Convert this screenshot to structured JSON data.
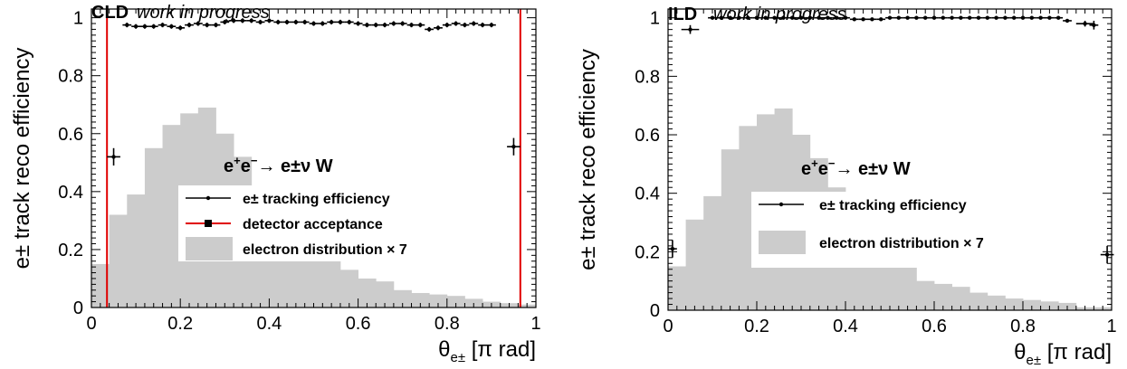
{
  "chart_data": [
    {
      "type": "bar",
      "experiment": "CLD",
      "status": "work in progress",
      "xlabel": "θ",
      "xlabel_sub": "e±",
      "xlabel_unit": "[π rad]",
      "ylabel": "e± track reco efficiency",
      "xlim": [
        0,
        1
      ],
      "ylim": [
        0,
        1.03
      ],
      "xticks": [
        0,
        0.2,
        0.4,
        0.6,
        0.8,
        1
      ],
      "xtick_labels": [
        "0",
        "0.2",
        "0.4",
        "0.6",
        "0.8",
        "1"
      ],
      "yticks": [
        0,
        0.2,
        0.4,
        0.6,
        0.8,
        1
      ],
      "ytick_labels": [
        "0",
        "0.2",
        "0.4",
        "0.6",
        "0.8",
        "1"
      ],
      "process": {
        "lead": "e",
        "sup1": "+",
        "e2": "e",
        "sup2": "−",
        "arrow": "→",
        "rest": "e±ν W"
      },
      "legend": [
        {
          "label": "e± tracking efficiency",
          "style": "point"
        },
        {
          "label": "detector acceptance",
          "style": "red-line"
        },
        {
          "label": "electron distribution × 7",
          "style": "fill"
        }
      ],
      "acceptance_lines": [
        0.035,
        0.965
      ],
      "distribution": {
        "bin_edges": [
          0,
          0.04,
          0.08,
          0.12,
          0.16,
          0.2,
          0.24,
          0.28,
          0.32,
          0.36,
          0.4,
          0.44,
          0.48,
          0.52,
          0.56,
          0.6,
          0.64,
          0.68,
          0.72,
          0.76,
          0.8,
          0.84,
          0.88,
          0.92,
          0.96,
          1.0
        ],
        "values": [
          0.15,
          0.32,
          0.39,
          0.55,
          0.63,
          0.67,
          0.69,
          0.6,
          0.52,
          0.42,
          0.37,
          0.33,
          0.27,
          0.17,
          0.13,
          0.1,
          0.09,
          0.06,
          0.05,
          0.045,
          0.04,
          0.03,
          0.02,
          0.015,
          0.01
        ]
      },
      "efficiency": {
        "points": [
          {
            "x": 0.05,
            "y": 0.52,
            "xerr": 0.015,
            "yerr": 0.03
          },
          {
            "x": 0.08,
            "y": 0.975,
            "xerr": 0.01,
            "yerr": 0.008
          },
          {
            "x": 0.1,
            "y": 0.97,
            "xerr": 0.01,
            "yerr": 0.008
          },
          {
            "x": 0.12,
            "y": 0.97,
            "xerr": 0.01,
            "yerr": 0.008
          },
          {
            "x": 0.14,
            "y": 0.97,
            "xerr": 0.01,
            "yerr": 0.008
          },
          {
            "x": 0.16,
            "y": 0.975,
            "xerr": 0.01,
            "yerr": 0.008
          },
          {
            "x": 0.18,
            "y": 0.97,
            "xerr": 0.01,
            "yerr": 0.008
          },
          {
            "x": 0.2,
            "y": 0.965,
            "xerr": 0.01,
            "yerr": 0.008
          },
          {
            "x": 0.22,
            "y": 0.975,
            "xerr": 0.01,
            "yerr": 0.008
          },
          {
            "x": 0.24,
            "y": 0.98,
            "xerr": 0.01,
            "yerr": 0.008
          },
          {
            "x": 0.26,
            "y": 0.975,
            "xerr": 0.01,
            "yerr": 0.008
          },
          {
            "x": 0.28,
            "y": 0.975,
            "xerr": 0.01,
            "yerr": 0.008
          },
          {
            "x": 0.3,
            "y": 0.985,
            "xerr": 0.01,
            "yerr": 0.008
          },
          {
            "x": 0.32,
            "y": 0.99,
            "xerr": 0.01,
            "yerr": 0.008
          },
          {
            "x": 0.34,
            "y": 0.99,
            "xerr": 0.01,
            "yerr": 0.008
          },
          {
            "x": 0.36,
            "y": 0.99,
            "xerr": 0.01,
            "yerr": 0.008
          },
          {
            "x": 0.38,
            "y": 0.985,
            "xerr": 0.01,
            "yerr": 0.008
          },
          {
            "x": 0.4,
            "y": 0.99,
            "xerr": 0.01,
            "yerr": 0.008
          },
          {
            "x": 0.42,
            "y": 0.985,
            "xerr": 0.01,
            "yerr": 0.008
          },
          {
            "x": 0.44,
            "y": 0.985,
            "xerr": 0.01,
            "yerr": 0.008
          },
          {
            "x": 0.46,
            "y": 0.985,
            "xerr": 0.01,
            "yerr": 0.008
          },
          {
            "x": 0.48,
            "y": 0.985,
            "xerr": 0.01,
            "yerr": 0.008
          },
          {
            "x": 0.5,
            "y": 0.98,
            "xerr": 0.01,
            "yerr": 0.008
          },
          {
            "x": 0.52,
            "y": 0.98,
            "xerr": 0.01,
            "yerr": 0.008
          },
          {
            "x": 0.54,
            "y": 0.985,
            "xerr": 0.01,
            "yerr": 0.008
          },
          {
            "x": 0.56,
            "y": 0.985,
            "xerr": 0.01,
            "yerr": 0.008
          },
          {
            "x": 0.58,
            "y": 0.985,
            "xerr": 0.01,
            "yerr": 0.008
          },
          {
            "x": 0.6,
            "y": 0.98,
            "xerr": 0.01,
            "yerr": 0.008
          },
          {
            "x": 0.62,
            "y": 0.975,
            "xerr": 0.01,
            "yerr": 0.008
          },
          {
            "x": 0.64,
            "y": 0.975,
            "xerr": 0.01,
            "yerr": 0.008
          },
          {
            "x": 0.66,
            "y": 0.975,
            "xerr": 0.01,
            "yerr": 0.008
          },
          {
            "x": 0.68,
            "y": 0.98,
            "xerr": 0.01,
            "yerr": 0.008
          },
          {
            "x": 0.7,
            "y": 0.98,
            "xerr": 0.01,
            "yerr": 0.008
          },
          {
            "x": 0.72,
            "y": 0.975,
            "xerr": 0.01,
            "yerr": 0.008
          },
          {
            "x": 0.74,
            "y": 0.975,
            "xerr": 0.01,
            "yerr": 0.008
          },
          {
            "x": 0.76,
            "y": 0.96,
            "xerr": 0.01,
            "yerr": 0.008
          },
          {
            "x": 0.78,
            "y": 0.965,
            "xerr": 0.01,
            "yerr": 0.008
          },
          {
            "x": 0.8,
            "y": 0.975,
            "xerr": 0.01,
            "yerr": 0.008
          },
          {
            "x": 0.82,
            "y": 0.98,
            "xerr": 0.01,
            "yerr": 0.008
          },
          {
            "x": 0.84,
            "y": 0.975,
            "xerr": 0.01,
            "yerr": 0.008
          },
          {
            "x": 0.86,
            "y": 0.98,
            "xerr": 0.01,
            "yerr": 0.008
          },
          {
            "x": 0.88,
            "y": 0.975,
            "xerr": 0.01,
            "yerr": 0.008
          },
          {
            "x": 0.9,
            "y": 0.975,
            "xerr": 0.01,
            "yerr": 0.008
          },
          {
            "x": 0.95,
            "y": 0.555,
            "xerr": 0.015,
            "yerr": 0.03
          }
        ]
      }
    },
    {
      "type": "bar",
      "experiment": "ILD",
      "status": "work in progress",
      "xlabel": "θ",
      "xlabel_sub": "e±",
      "xlabel_unit": "[π rad]",
      "ylabel": "e± track reco efficiency",
      "xlim": [
        0,
        1
      ],
      "ylim": [
        0,
        1.03
      ],
      "xticks": [
        0,
        0.2,
        0.4,
        0.6,
        0.8,
        1
      ],
      "xtick_labels": [
        "0",
        "0.2",
        "0.4",
        "0.6",
        "0.8",
        "1"
      ],
      "yticks": [
        0,
        0.2,
        0.4,
        0.6,
        0.8,
        1
      ],
      "ytick_labels": [
        "0",
        "0.2",
        "0.4",
        "0.6",
        "0.8",
        "1"
      ],
      "process": {
        "lead": "e",
        "sup1": "+",
        "e2": "e",
        "sup2": "−",
        "arrow": "→",
        "rest": "e±ν W"
      },
      "legend": [
        {
          "label": "e± tracking efficiency",
          "style": "point"
        },
        {
          "label": "electron distribution × 7",
          "style": "fill"
        }
      ],
      "acceptance_lines": [],
      "distribution": {
        "bin_edges": [
          0,
          0.04,
          0.08,
          0.12,
          0.16,
          0.2,
          0.24,
          0.28,
          0.32,
          0.36,
          0.4,
          0.44,
          0.48,
          0.52,
          0.56,
          0.6,
          0.64,
          0.68,
          0.72,
          0.76,
          0.8,
          0.84,
          0.88,
          0.92,
          0.96,
          1.0
        ],
        "values": [
          0.15,
          0.31,
          0.39,
          0.55,
          0.63,
          0.67,
          0.69,
          0.6,
          0.52,
          0.42,
          0.36,
          0.33,
          0.27,
          0.17,
          0.1,
          0.09,
          0.08,
          0.06,
          0.05,
          0.04,
          0.035,
          0.03,
          0.025,
          0.01,
          0.01
        ]
      },
      "efficiency": {
        "points": [
          {
            "x": 0.01,
            "y": 0.21,
            "xerr": 0.01,
            "yerr": 0.03
          },
          {
            "x": 0.05,
            "y": 0.96,
            "xerr": 0.02,
            "yerr": 0.015
          },
          {
            "x": 0.1,
            "y": 1.0,
            "xerr": 0.01,
            "yerr": 0.004
          },
          {
            "x": 0.12,
            "y": 1.0,
            "xerr": 0.01,
            "yerr": 0.004
          },
          {
            "x": 0.14,
            "y": 1.0,
            "xerr": 0.01,
            "yerr": 0.004
          },
          {
            "x": 0.16,
            "y": 1.0,
            "xerr": 0.01,
            "yerr": 0.004
          },
          {
            "x": 0.18,
            "y": 1.0,
            "xerr": 0.01,
            "yerr": 0.004
          },
          {
            "x": 0.2,
            "y": 1.0,
            "xerr": 0.01,
            "yerr": 0.004
          },
          {
            "x": 0.22,
            "y": 1.0,
            "xerr": 0.01,
            "yerr": 0.004
          },
          {
            "x": 0.24,
            "y": 1.0,
            "xerr": 0.01,
            "yerr": 0.004
          },
          {
            "x": 0.26,
            "y": 1.0,
            "xerr": 0.01,
            "yerr": 0.004
          },
          {
            "x": 0.28,
            "y": 1.0,
            "xerr": 0.01,
            "yerr": 0.004
          },
          {
            "x": 0.3,
            "y": 1.0,
            "xerr": 0.01,
            "yerr": 0.004
          },
          {
            "x": 0.32,
            "y": 1.0,
            "xerr": 0.01,
            "yerr": 0.004
          },
          {
            "x": 0.34,
            "y": 1.0,
            "xerr": 0.01,
            "yerr": 0.004
          },
          {
            "x": 0.36,
            "y": 1.0,
            "xerr": 0.01,
            "yerr": 0.004
          },
          {
            "x": 0.38,
            "y": 1.0,
            "xerr": 0.01,
            "yerr": 0.004
          },
          {
            "x": 0.4,
            "y": 1.0,
            "xerr": 0.01,
            "yerr": 0.004
          },
          {
            "x": 0.42,
            "y": 0.995,
            "xerr": 0.01,
            "yerr": 0.004
          },
          {
            "x": 0.44,
            "y": 0.995,
            "xerr": 0.01,
            "yerr": 0.004
          },
          {
            "x": 0.46,
            "y": 0.995,
            "xerr": 0.01,
            "yerr": 0.004
          },
          {
            "x": 0.48,
            "y": 0.995,
            "xerr": 0.01,
            "yerr": 0.004
          },
          {
            "x": 0.5,
            "y": 1.0,
            "xerr": 0.01,
            "yerr": 0.004
          },
          {
            "x": 0.52,
            "y": 1.0,
            "xerr": 0.01,
            "yerr": 0.004
          },
          {
            "x": 0.54,
            "y": 1.0,
            "xerr": 0.01,
            "yerr": 0.004
          },
          {
            "x": 0.56,
            "y": 1.0,
            "xerr": 0.01,
            "yerr": 0.004
          },
          {
            "x": 0.58,
            "y": 1.0,
            "xerr": 0.01,
            "yerr": 0.004
          },
          {
            "x": 0.6,
            "y": 1.0,
            "xerr": 0.01,
            "yerr": 0.004
          },
          {
            "x": 0.62,
            "y": 1.0,
            "xerr": 0.01,
            "yerr": 0.004
          },
          {
            "x": 0.64,
            "y": 1.0,
            "xerr": 0.01,
            "yerr": 0.004
          },
          {
            "x": 0.66,
            "y": 1.0,
            "xerr": 0.01,
            "yerr": 0.004
          },
          {
            "x": 0.68,
            "y": 1.0,
            "xerr": 0.01,
            "yerr": 0.004
          },
          {
            "x": 0.7,
            "y": 1.0,
            "xerr": 0.01,
            "yerr": 0.004
          },
          {
            "x": 0.72,
            "y": 1.0,
            "xerr": 0.01,
            "yerr": 0.004
          },
          {
            "x": 0.74,
            "y": 1.0,
            "xerr": 0.01,
            "yerr": 0.004
          },
          {
            "x": 0.76,
            "y": 1.0,
            "xerr": 0.01,
            "yerr": 0.004
          },
          {
            "x": 0.78,
            "y": 1.0,
            "xerr": 0.01,
            "yerr": 0.004
          },
          {
            "x": 0.8,
            "y": 1.0,
            "xerr": 0.01,
            "yerr": 0.004
          },
          {
            "x": 0.82,
            "y": 1.0,
            "xerr": 0.01,
            "yerr": 0.004
          },
          {
            "x": 0.84,
            "y": 1.0,
            "xerr": 0.01,
            "yerr": 0.004
          },
          {
            "x": 0.86,
            "y": 1.0,
            "xerr": 0.01,
            "yerr": 0.004
          },
          {
            "x": 0.88,
            "y": 1.0,
            "xerr": 0.01,
            "yerr": 0.004
          },
          {
            "x": 0.9,
            "y": 0.99,
            "xerr": 0.01,
            "yerr": 0.006
          },
          {
            "x": 0.94,
            "y": 0.98,
            "xerr": 0.02,
            "yerr": 0.01
          },
          {
            "x": 0.96,
            "y": 0.975,
            "xerr": 0.01,
            "yerr": 0.015
          },
          {
            "x": 0.99,
            "y": 0.19,
            "xerr": 0.015,
            "yerr": 0.03
          }
        ]
      }
    }
  ]
}
